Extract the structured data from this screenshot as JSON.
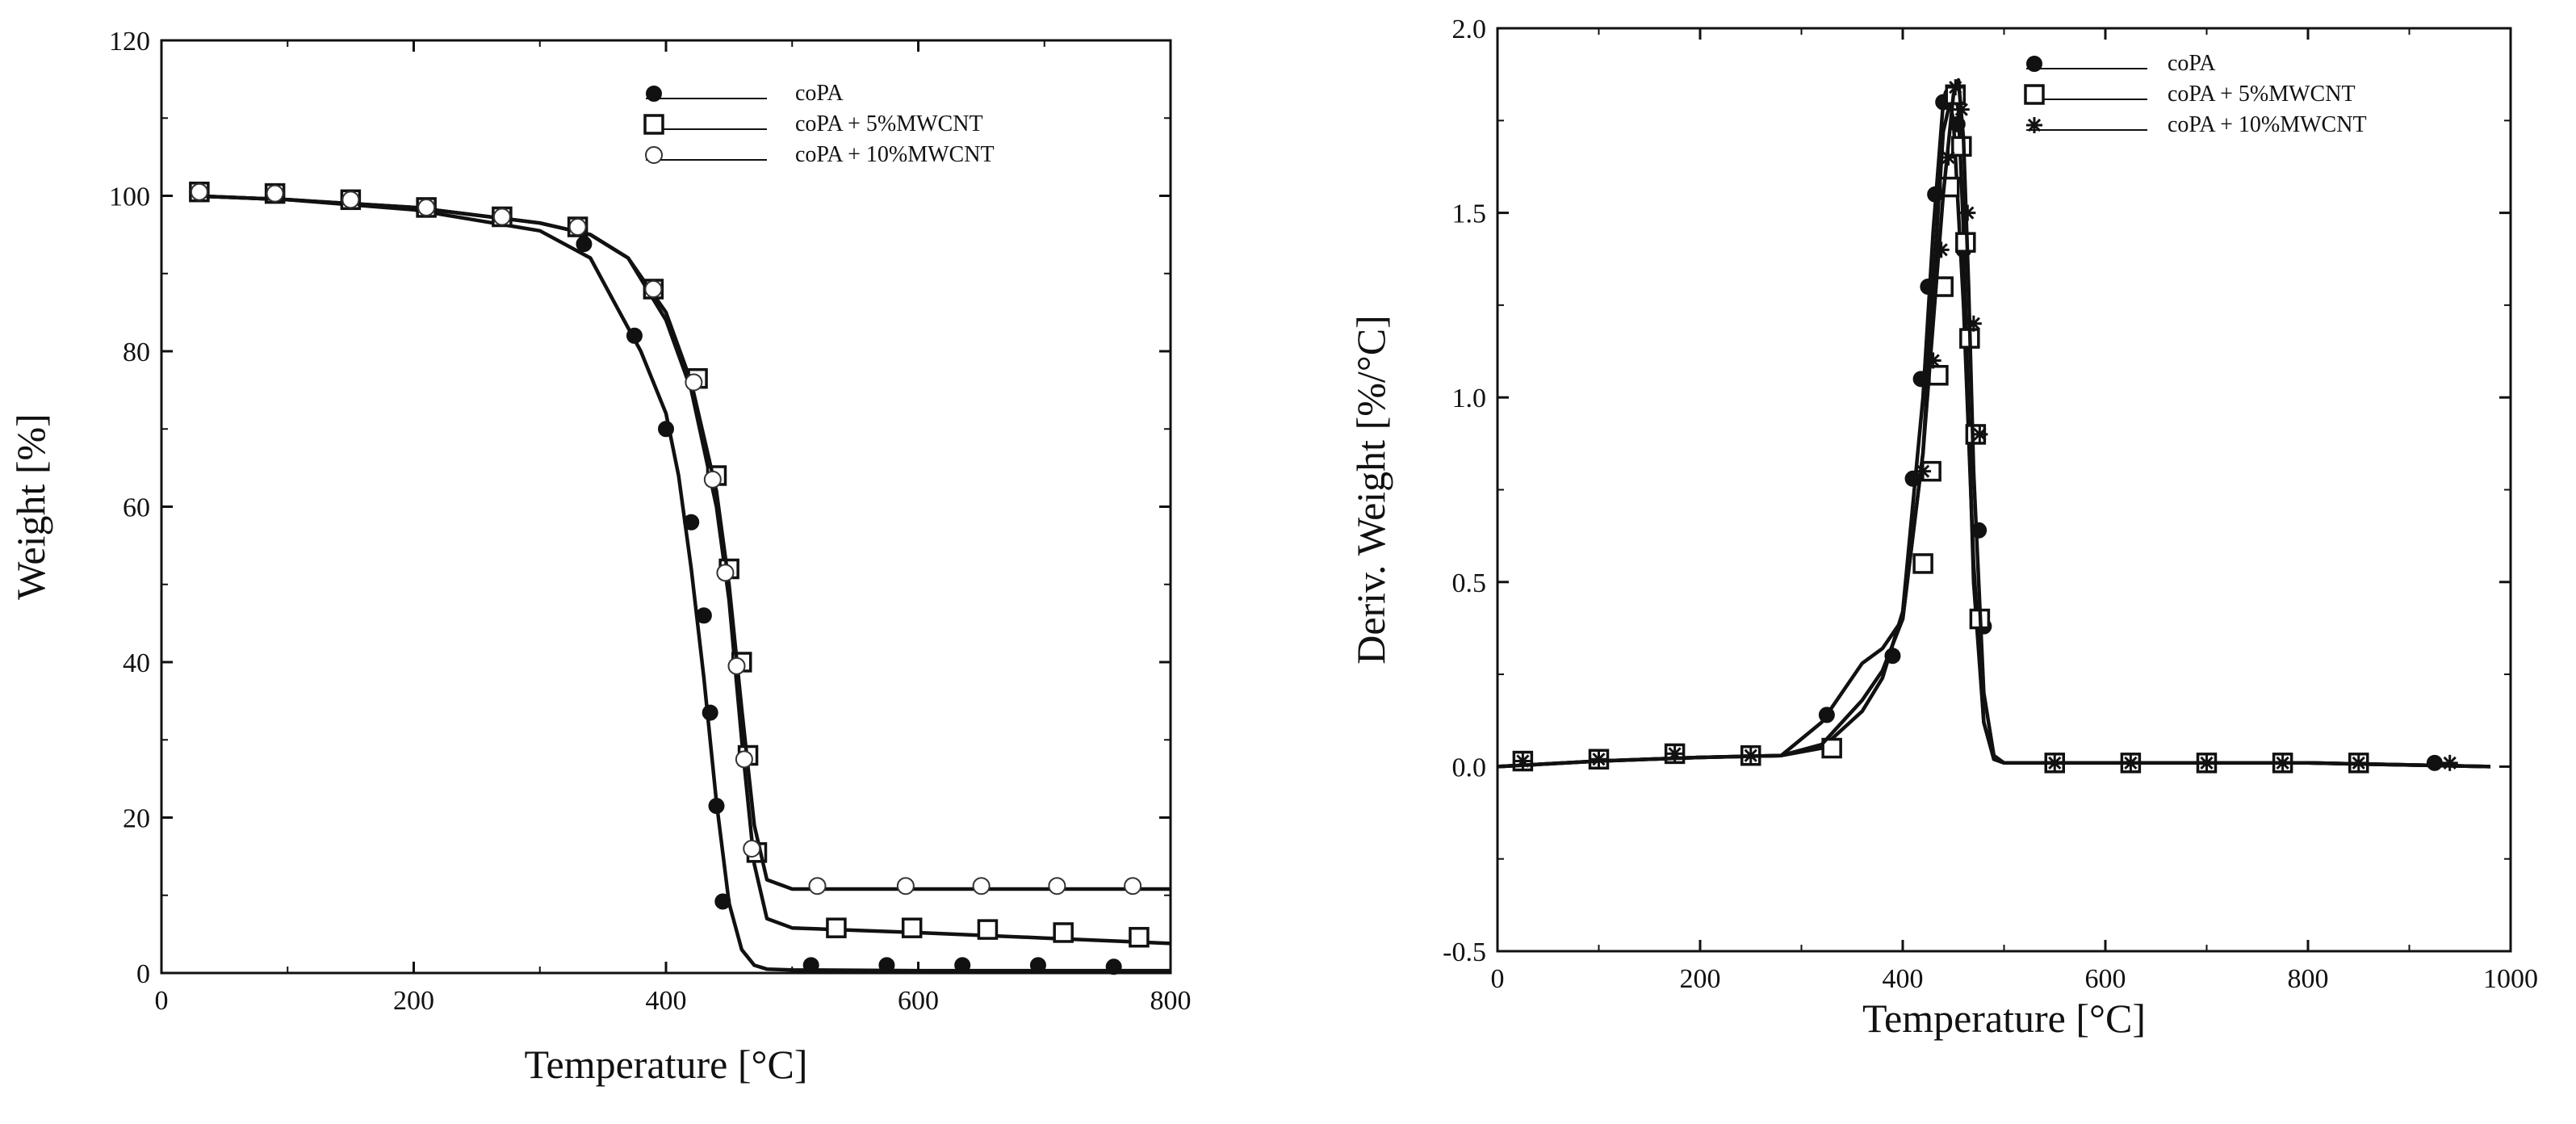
{
  "chart_data": [
    {
      "type": "line",
      "title": "",
      "xlabel": "Temperature [°C]",
      "ylabel": "Weight [%]",
      "xlim": [
        0,
        800
      ],
      "ylim": [
        0,
        120
      ],
      "xticks": [
        0,
        200,
        400,
        600,
        800
      ],
      "yticks": [
        0,
        20,
        40,
        60,
        80,
        100,
        120
      ],
      "grid": false,
      "legend_position": "top-right",
      "series": [
        {
          "name": "coPA",
          "marker": "filled-circle",
          "x": [
            25,
            100,
            200,
            300,
            340,
            360,
            380,
            400,
            410,
            420,
            430,
            440,
            450,
            460,
            470,
            480,
            500,
            600,
            700,
            800
          ],
          "y": [
            100,
            99.5,
            98.2,
            95.5,
            92,
            86,
            80,
            72,
            64,
            52,
            38,
            22,
            9,
            3,
            1,
            0.5,
            0.4,
            0.3,
            0.3,
            0.3
          ],
          "marker_x": [
            30,
            90,
            150,
            210,
            270,
            335,
            375,
            400,
            420,
            430,
            435,
            440,
            445,
            515,
            575,
            635,
            695,
            755
          ],
          "marker_y": [
            100.5,
            100.2,
            99.5,
            98.3,
            97.2,
            93.8,
            82,
            70,
            58,
            46,
            33.5,
            21.5,
            9.2,
            1,
            1,
            1,
            1,
            0.8
          ]
        },
        {
          "name": "coPA + 5%MWCNT",
          "marker": "open-square",
          "x": [
            25,
            100,
            200,
            300,
            340,
            370,
            400,
            420,
            440,
            450,
            460,
            470,
            480,
            500,
            600,
            700,
            800
          ],
          "y": [
            100,
            99.5,
            98.5,
            96.5,
            95,
            92,
            84,
            75,
            60,
            48,
            30,
            14,
            7,
            5.8,
            5.2,
            4.5,
            3.8
          ],
          "marker_x": [
            30,
            90,
            150,
            210,
            270,
            330,
            390,
            425,
            440,
            450,
            460,
            465,
            472,
            535,
            595,
            655,
            715,
            775
          ],
          "marker_y": [
            100.5,
            100.3,
            99.5,
            98.5,
            97.3,
            96,
            88,
            76.5,
            64,
            52,
            40,
            28,
            15.5,
            5.8,
            5.8,
            5.6,
            5.2,
            4.6
          ]
        },
        {
          "name": "coPA + 10%MWCNT",
          "marker": "open-circle",
          "x": [
            25,
            100,
            200,
            300,
            340,
            370,
            400,
            420,
            440,
            450,
            460,
            470,
            480,
            500,
            600,
            700,
            800
          ],
          "y": [
            100,
            99.5,
            98.5,
            96.5,
            95,
            92,
            85,
            76,
            62,
            50,
            34,
            19,
            12,
            10.8,
            10.8,
            10.8,
            10.8
          ],
          "marker_x": [
            30,
            90,
            150,
            210,
            270,
            330,
            390,
            422,
            437,
            447,
            456,
            462,
            468,
            520,
            590,
            650,
            710,
            770
          ],
          "marker_y": [
            100.5,
            100.3,
            99.5,
            98.5,
            97.3,
            96,
            88,
            76,
            63.5,
            51.5,
            39.5,
            27.5,
            16,
            11.2,
            11.2,
            11.2,
            11.2,
            11.2
          ]
        }
      ]
    },
    {
      "type": "line",
      "title": "",
      "xlabel": "Temperature [°C]",
      "ylabel": "Deriv. Weight [%/°C]",
      "xlim": [
        0,
        1000
      ],
      "ylim": [
        -0.5,
        2.0
      ],
      "xticks": [
        0,
        200,
        400,
        600,
        800,
        1000
      ],
      "yticks": [
        -0.5,
        0.0,
        0.5,
        1.0,
        1.5,
        2.0
      ],
      "grid": false,
      "legend_position": "top-right",
      "series": [
        {
          "name": "coPA",
          "marker": "filled-circle",
          "x": [
            0,
            100,
            200,
            280,
            320,
            360,
            380,
            400,
            420,
            430,
            440,
            450,
            455,
            460,
            465,
            470,
            480,
            490,
            500,
            600,
            800,
            980
          ],
          "y": [
            0,
            0.015,
            0.025,
            0.03,
            0.12,
            0.28,
            0.32,
            0.4,
            0.85,
            1.3,
            1.72,
            1.84,
            1.78,
            1.45,
            0.95,
            0.5,
            0.12,
            0.02,
            0.01,
            0.01,
            0.01,
            0.0
          ],
          "marker_x": [
            25,
            100,
            175,
            250,
            325,
            390,
            410,
            418,
            425,
            432,
            440,
            448,
            454,
            460,
            465,
            470,
            475,
            480,
            550,
            625,
            700,
            775,
            850,
            925
          ],
          "marker_y": [
            0.015,
            0.02,
            0.035,
            0.03,
            0.14,
            0.3,
            0.78,
            1.05,
            1.3,
            1.55,
            1.8,
            1.82,
            1.74,
            1.4,
            1.16,
            0.9,
            0.64,
            0.38,
            0.01,
            0.01,
            0.01,
            0.01,
            0.01,
            0.01
          ]
        },
        {
          "name": "coPA + 5%MWCNT",
          "marker": "open-square",
          "x": [
            0,
            100,
            200,
            280,
            320,
            360,
            380,
            400,
            420,
            430,
            440,
            445,
            450,
            460,
            470,
            480,
            490,
            500,
            600,
            800,
            980
          ],
          "y": [
            0,
            0.015,
            0.025,
            0.03,
            0.05,
            0.15,
            0.24,
            0.42,
            1.0,
            1.45,
            1.8,
            1.82,
            1.75,
            1.25,
            0.55,
            0.12,
            0.02,
            0.01,
            0.01,
            0.01,
            0.0
          ],
          "marker_x": [
            25,
            100,
            175,
            250,
            330,
            420,
            428,
            435,
            440,
            446,
            452,
            458,
            462,
            466,
            472,
            476,
            550,
            625,
            700,
            775,
            850
          ],
          "marker_y": [
            0.015,
            0.02,
            0.035,
            0.03,
            0.05,
            0.55,
            0.8,
            1.06,
            1.3,
            1.57,
            1.82,
            1.68,
            1.42,
            1.16,
            0.9,
            0.4,
            0.01,
            0.01,
            0.01,
            0.01,
            0.01
          ]
        },
        {
          "name": "coPA + 10%MWCNT",
          "marker": "asterisk",
          "x": [
            0,
            100,
            200,
            280,
            320,
            360,
            380,
            400,
            420,
            440,
            450,
            455,
            460,
            465,
            470,
            480,
            490,
            500,
            600,
            800,
            980
          ],
          "y": [
            0,
            0.015,
            0.025,
            0.03,
            0.06,
            0.18,
            0.26,
            0.4,
            0.85,
            1.55,
            1.82,
            1.86,
            1.7,
            1.3,
            0.8,
            0.2,
            0.03,
            0.01,
            0.01,
            0.01,
            0.0
          ],
          "marker_x": [
            25,
            100,
            175,
            250,
            420,
            430,
            438,
            445,
            452,
            458,
            464,
            470,
            476,
            550,
            625,
            700,
            775,
            850,
            940
          ],
          "marker_y": [
            0.015,
            0.02,
            0.035,
            0.03,
            0.8,
            1.1,
            1.4,
            1.65,
            1.84,
            1.78,
            1.5,
            1.2,
            0.9,
            0.01,
            0.01,
            0.01,
            0.01,
            0.01,
            0.01
          ]
        }
      ]
    }
  ]
}
